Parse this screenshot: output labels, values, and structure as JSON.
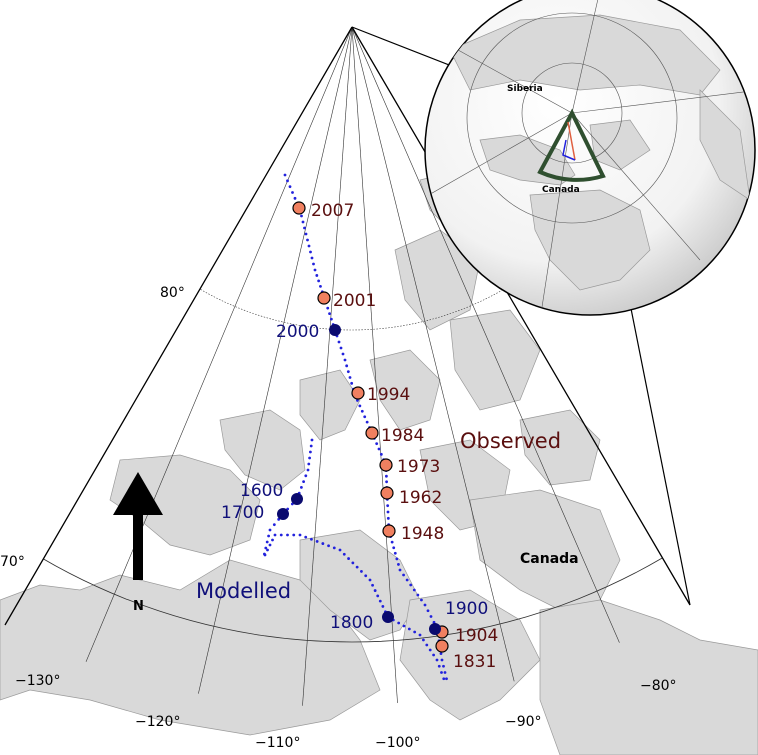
{
  "map": {
    "region_label": "Canada",
    "observed_label": "Observed",
    "modelled_label": "Modelled",
    "north_label": "N",
    "colors": {
      "observed": "#f08060",
      "modelled": "#0a0a6e",
      "track": "#2222dd",
      "sector_outline": "#2f4f2f",
      "land": "#d9d9d9"
    },
    "latitude_labels": [
      "80°",
      "70°"
    ],
    "longitude_labels": [
      "−130°",
      "−120°",
      "−110°",
      "−100°",
      "−90°",
      "−80°"
    ],
    "observed": [
      "2007",
      "2001",
      "1994",
      "1984",
      "1973",
      "1962",
      "1948",
      "1904",
      "1831"
    ],
    "modelled": [
      "2000",
      "1600",
      "1700",
      "1800",
      "1900"
    ]
  },
  "inset": {
    "labels": {
      "siberia": "Siberia",
      "canada": "Canada"
    }
  }
}
